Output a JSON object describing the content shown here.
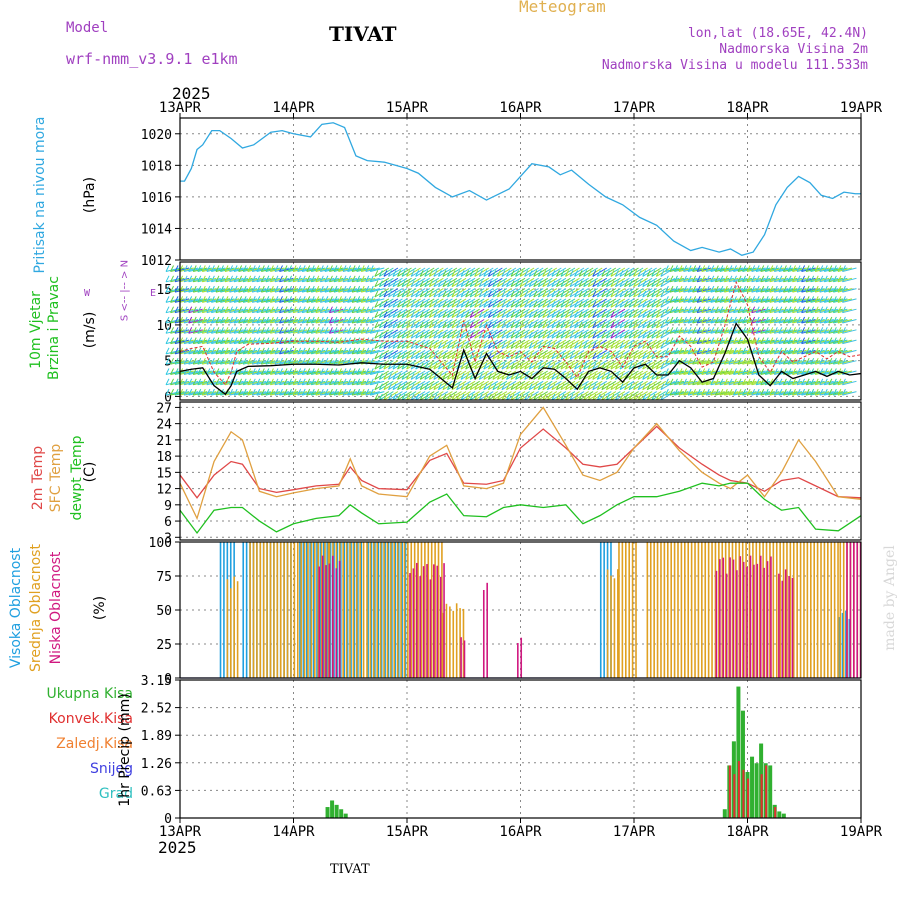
{
  "header": {
    "meteogram": "Meteogram",
    "model_label": "Model",
    "model_name": "wrf-nmm_v3.9.1 e1km",
    "station": "TIVAT",
    "lonlat": "lon,lat (18.65E, 42.4N)",
    "height": "Nadmorska Visina 2m",
    "model_height": "Nadmorska Visina u modelu 111.533m",
    "year_top": "2025",
    "year_bottom": "2025",
    "footer_station": "TIVAT",
    "watermark": "made by Angel"
  },
  "colors": {
    "pressure": "#30a8e0",
    "wind_label": "#20c020",
    "temp2m": "#e04848",
    "sfc": "#e0a040",
    "dew": "#20c020",
    "high_cloud": "#20a0e0",
    "mid_cloud": "#e0a020",
    "low_cloud": "#d01880",
    "rain_total": "#30b030",
    "rain_conv": "#e03030",
    "rain_strat": "#f08030",
    "snow": "#4040e0",
    "grad": "#30c0c0"
  },
  "chart_data": [
    {
      "type": "line",
      "panel": "pressure",
      "ylabel_left": "Pritisak na nivou mora",
      "ylabel_units": "(hPa)",
      "ylim": [
        1012,
        1021
      ],
      "yticks": [
        1012,
        1014,
        1016,
        1018,
        1020
      ],
      "x_start": "13APR",
      "x_end": "19APR",
      "x_days": 6,
      "xticks": [
        "13APR",
        "14APR",
        "15APR",
        "16APR",
        "17APR",
        "18APR",
        "19APR"
      ],
      "series": [
        {
          "name": "pressure",
          "x": [
            0,
            0.04,
            0.1,
            0.15,
            0.2,
            0.28,
            0.35,
            0.45,
            0.55,
            0.65,
            0.8,
            0.9,
            1.0,
            1.15,
            1.25,
            1.35,
            1.45,
            1.55,
            1.65,
            1.8,
            2.0,
            2.1,
            2.25,
            2.4,
            2.55,
            2.7,
            2.9,
            3.1,
            3.25,
            3.35,
            3.45,
            3.6,
            3.75,
            3.9,
            4.05,
            4.2,
            4.35,
            4.5,
            4.6,
            4.75,
            4.85,
            4.95,
            5.05,
            5.15,
            5.25,
            5.35,
            5.45,
            5.55,
            5.65,
            5.75,
            5.85,
            5.95,
            6.0
          ],
          "y": [
            1017.0,
            1017.0,
            1017.8,
            1019.0,
            1019.3,
            1020.2,
            1020.2,
            1019.7,
            1019.1,
            1019.3,
            1020.1,
            1020.2,
            1020.0,
            1019.8,
            1020.6,
            1020.7,
            1020.4,
            1018.6,
            1018.3,
            1018.2,
            1017.8,
            1017.5,
            1016.6,
            1016.0,
            1016.4,
            1015.8,
            1016.5,
            1018.1,
            1017.9,
            1017.4,
            1017.7,
            1016.8,
            1016.0,
            1015.5,
            1014.7,
            1014.2,
            1013.2,
            1012.6,
            1012.8,
            1012.5,
            1012.7,
            1012.3,
            1012.5,
            1013.6,
            1015.5,
            1016.6,
            1017.3,
            1016.9,
            1016.1,
            1015.9,
            1016.3,
            1016.2,
            1016.2
          ]
        }
      ]
    },
    {
      "type": "line",
      "panel": "wind",
      "ylabel_left1": "10m Vjetar",
      "ylabel_left2": "Brzina i Pravac",
      "ylabel_units": "(m/s)",
      "ylim": [
        -0.5,
        18.8
      ],
      "yticks": [
        0,
        5,
        10,
        15
      ],
      "compass": {
        "n": "N",
        "arrows": "<-- |-- >",
        "s": "S",
        "w": "W",
        "e": "E"
      },
      "series": [
        {
          "name": "speed",
          "x": [
            0,
            0.1,
            0.2,
            0.3,
            0.4,
            0.45,
            0.5,
            0.6,
            0.8,
            1.0,
            1.2,
            1.4,
            1.6,
            1.8,
            2.0,
            2.2,
            2.3,
            2.4,
            2.5,
            2.6,
            2.7,
            2.8,
            2.9,
            3.0,
            3.1,
            3.2,
            3.3,
            3.4,
            3.5,
            3.6,
            3.7,
            3.8,
            3.9,
            4.0,
            4.1,
            4.2,
            4.3,
            4.4,
            4.5,
            4.6,
            4.7,
            4.8,
            4.9,
            5.0,
            5.1,
            5.2,
            5.3,
            5.4,
            5.5,
            5.6,
            5.7,
            5.8,
            5.9,
            6.0
          ],
          "y": [
            3.5,
            3.8,
            4.0,
            1.5,
            0.3,
            1.5,
            3.5,
            4.2,
            4.3,
            4.5,
            4.5,
            4.4,
            4.7,
            4.5,
            4.5,
            3.8,
            2.5,
            1.2,
            6.5,
            2.5,
            6.0,
            3.5,
            3.0,
            3.5,
            2.5,
            4.0,
            3.8,
            2.5,
            1.0,
            3.5,
            4.0,
            3.5,
            2.0,
            4.0,
            4.5,
            3.0,
            3.0,
            5.0,
            4.0,
            2.0,
            2.5,
            6.0,
            10.2,
            8.0,
            3.0,
            1.5,
            3.5,
            2.5,
            3.0,
            3.5,
            2.8,
            3.5,
            3.0,
            3.2
          ]
        }
      ]
    },
    {
      "type": "line",
      "panel": "temperature",
      "ylabel_left1": "2m Temp",
      "ylabel_left2": "SFC Temp",
      "ylabel_left3": "dewpt Temp",
      "ylabel_units": "(C)",
      "ylim": [
        2.5,
        28
      ],
      "yticks": [
        3,
        6,
        9,
        12,
        15,
        18,
        21,
        24,
        27
      ],
      "series": [
        {
          "name": "2m Temp",
          "x": [
            0,
            0.15,
            0.3,
            0.45,
            0.55,
            0.7,
            0.85,
            1.0,
            1.2,
            1.4,
            1.5,
            1.6,
            1.75,
            2.0,
            2.2,
            2.35,
            2.5,
            2.7,
            2.85,
            3.0,
            3.2,
            3.4,
            3.55,
            3.7,
            3.85,
            4.0,
            4.2,
            4.4,
            4.6,
            4.75,
            4.85,
            5.0,
            5.15,
            5.3,
            5.45,
            5.6,
            5.8,
            6.0
          ],
          "y": [
            14.5,
            10.3,
            14.5,
            17.0,
            16.5,
            12.0,
            11.3,
            11.8,
            12.5,
            12.8,
            16.0,
            13.5,
            12.0,
            11.8,
            17.2,
            18.5,
            13.0,
            12.8,
            13.5,
            19.5,
            23.0,
            19.5,
            16.5,
            16.0,
            16.5,
            19.5,
            23.5,
            19.5,
            16.5,
            14.5,
            13.5,
            13.0,
            11.5,
            13.5,
            14.0,
            12.5,
            10.5,
            10.3
          ]
        },
        {
          "name": "SFC Temp",
          "x": [
            0,
            0.15,
            0.3,
            0.45,
            0.55,
            0.7,
            0.85,
            1.0,
            1.2,
            1.4,
            1.5,
            1.6,
            1.75,
            2.0,
            2.2,
            2.35,
            2.5,
            2.7,
            2.85,
            3.0,
            3.2,
            3.4,
            3.55,
            3.7,
            3.85,
            4.0,
            4.2,
            4.4,
            4.6,
            4.75,
            4.85,
            5.0,
            5.15,
            5.3,
            5.45,
            5.6,
            5.8,
            6.0
          ],
          "y": [
            13.0,
            6.5,
            17.0,
            22.5,
            21.0,
            11.5,
            10.5,
            11.2,
            12.0,
            12.5,
            17.5,
            12.5,
            11.0,
            10.5,
            18.0,
            20.0,
            12.5,
            12.0,
            13.0,
            22.0,
            27.0,
            20.0,
            14.5,
            13.5,
            15.0,
            19.5,
            24.0,
            19.0,
            15.0,
            13.0,
            12.0,
            14.5,
            10.5,
            15.0,
            21.0,
            17.0,
            10.5,
            10.0
          ]
        },
        {
          "name": "dewpt Temp",
          "x": [
            0,
            0.15,
            0.3,
            0.45,
            0.55,
            0.7,
            0.85,
            1.0,
            1.2,
            1.4,
            1.5,
            1.6,
            1.75,
            2.0,
            2.2,
            2.35,
            2.5,
            2.7,
            2.85,
            3.0,
            3.2,
            3.4,
            3.55,
            3.7,
            3.85,
            4.0,
            4.2,
            4.4,
            4.6,
            4.75,
            4.85,
            5.0,
            5.15,
            5.3,
            5.45,
            5.6,
            5.8,
            6.0
          ],
          "y": [
            8.0,
            3.8,
            8.0,
            8.5,
            8.5,
            6.0,
            4.0,
            5.5,
            6.5,
            7.0,
            9.0,
            7.5,
            5.5,
            5.8,
            9.5,
            11.0,
            7.0,
            6.8,
            8.5,
            9.0,
            8.5,
            9.0,
            5.5,
            7.0,
            9.0,
            10.5,
            10.5,
            11.5,
            13.0,
            12.5,
            13.0,
            13.0,
            10.0,
            8.0,
            8.5,
            4.5,
            4.2,
            7.0
          ]
        }
      ]
    },
    {
      "type": "bar",
      "panel": "clouds",
      "ylabel_left1": "Visoka Oblacnost",
      "ylabel_left2": "Srednja Oblacnost",
      "ylabel_left3": "Niska Oblacnost",
      "ylabel_units": "(%)",
      "ylim": [
        0,
        100
      ],
      "yticks": [
        0,
        25,
        50,
        75,
        100
      ],
      "high": {
        "ranges": [
          [
            0.35,
            0.5,
            100
          ],
          [
            0.55,
            1.0,
            100
          ],
          [
            1.05,
            1.6,
            100
          ],
          [
            1.65,
            2.0,
            100
          ],
          [
            3.7,
            3.8,
            100
          ],
          [
            5.8,
            5.9,
            50
          ]
        ]
      },
      "mid": {
        "ranges": [
          [
            0.4,
            0.5,
            75
          ],
          [
            0.6,
            1.3,
            100
          ],
          [
            1.3,
            2.3,
            100
          ],
          [
            2.3,
            2.5,
            55
          ],
          [
            3.75,
            3.85,
            80
          ],
          [
            3.85,
            4.0,
            100
          ],
          [
            4.1,
            5.8,
            100
          ],
          [
            5.8,
            6.0,
            100
          ]
        ]
      },
      "low": {
        "ranges": [
          [
            1.2,
            1.4,
            90
          ],
          [
            2.0,
            2.3,
            85
          ],
          [
            2.45,
            2.5,
            30
          ],
          [
            2.65,
            2.7,
            70
          ],
          [
            2.95,
            3.0,
            30
          ],
          [
            4.7,
            5.2,
            90
          ],
          [
            5.25,
            5.4,
            80
          ],
          [
            5.85,
            6.0,
            100
          ]
        ]
      }
    },
    {
      "type": "bar",
      "panel": "precip",
      "legend": [
        "Ukupna Kisa",
        "Konvek.Kisa",
        "Zaledj.Kisa",
        "Snijeg",
        "Grad"
      ],
      "ylabel_units": "1hr Precip (mm)",
      "ylim": [
        0,
        3.15
      ],
      "yticks": [
        0,
        0.63,
        1.26,
        1.89,
        2.52,
        3.15
      ],
      "series": [
        {
          "name": "Ukupna Kisa",
          "x": [
            1.3,
            1.34,
            1.38,
            1.42,
            1.46,
            4.8,
            4.84,
            4.88,
            4.92,
            4.96,
            5.0,
            5.04,
            5.08,
            5.12,
            5.16,
            5.2,
            5.24,
            5.28,
            5.32
          ],
          "y": [
            0.25,
            0.4,
            0.3,
            0.2,
            0.1,
            0.2,
            1.2,
            1.75,
            3.0,
            2.45,
            1.05,
            1.4,
            1.25,
            1.7,
            1.25,
            1.2,
            0.3,
            0.15,
            0.1
          ]
        },
        {
          "name": "Konvek.Kisa",
          "x": [
            4.84,
            4.88,
            4.92,
            4.96,
            5.0,
            5.12,
            5.16,
            5.24
          ],
          "y": [
            1.2,
            1.0,
            1.3,
            1.1,
            0.9,
            1.0,
            1.2,
            0.25
          ]
        }
      ]
    }
  ]
}
